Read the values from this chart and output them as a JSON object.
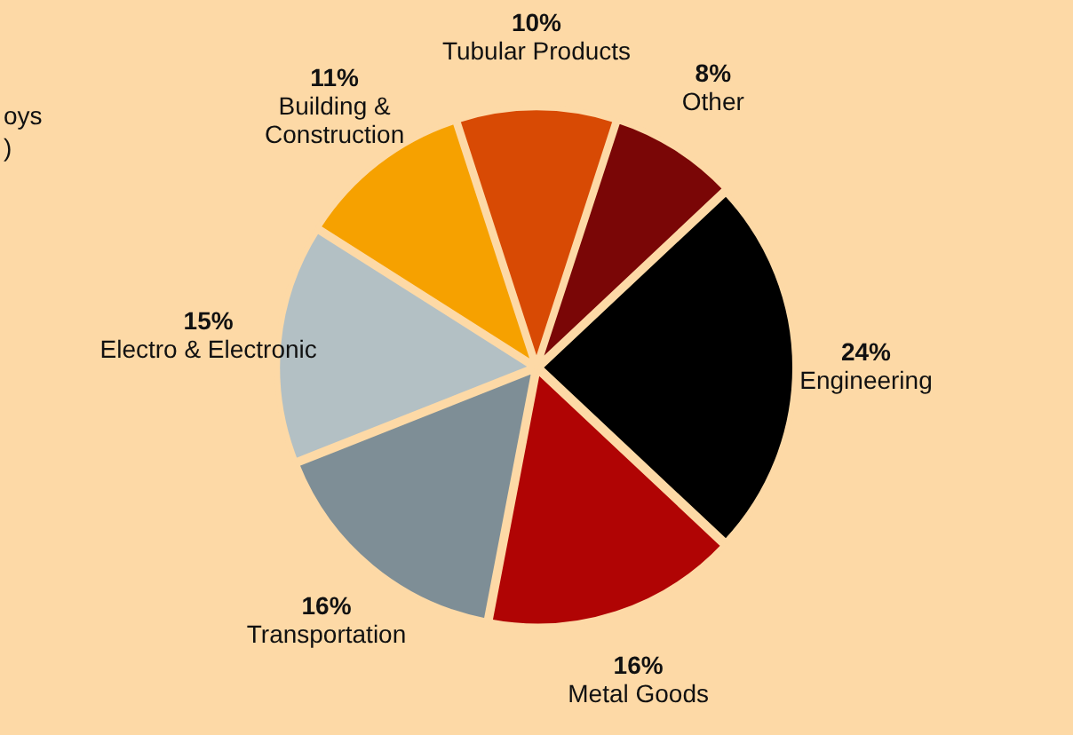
{
  "chart_data": {
    "type": "pie",
    "categories": [
      "Other",
      "Engineering",
      "Metal Goods",
      "Transportation",
      "Electro & Electronic",
      "Building &\nConstruction",
      "Tubular Products"
    ],
    "values": [
      8,
      24,
      16,
      16,
      15,
      11,
      10
    ],
    "value_labels": [
      "8%",
      "24%",
      "16%",
      "16%",
      "15%",
      "11%",
      "10%"
    ],
    "colors": [
      "#7a0606",
      "#000000",
      "#b00404",
      "#7e8e96",
      "#b3c0c4",
      "#f6a100",
      "#d84a04"
    ],
    "legend": false,
    "annotations": [
      "oys",
      ")"
    ]
  }
}
